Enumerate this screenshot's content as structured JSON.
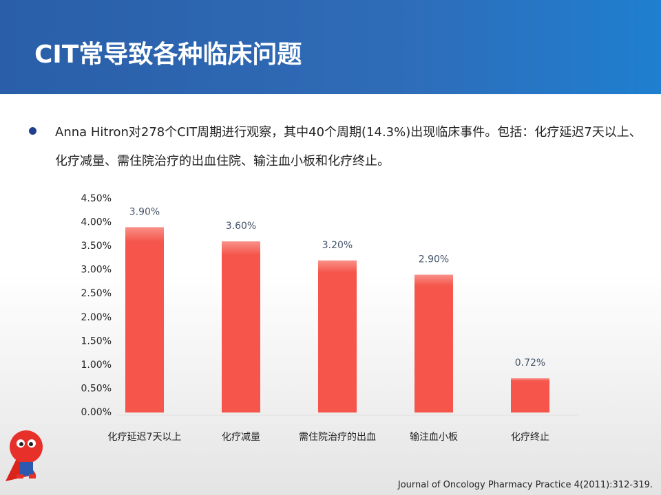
{
  "header": {
    "title": "CIT常导致各种临床问题"
  },
  "bullet": "Anna Hitron对278个CIT周期进行观察，其中40个周期(14.3%)出现临床事件。包括：化疗延迟7天以上、化疗减量、需住院治疗的出血住院、输注血小板和化疗终止。",
  "chart_data": {
    "type": "bar",
    "categories": [
      "化疗延迟7天以上",
      "化疗减量",
      "需住院治疗的出血",
      "输注血小板",
      "化疗终止"
    ],
    "values": [
      3.9,
      3.6,
      3.2,
      2.9,
      0.72
    ],
    "value_labels": [
      "3.90%",
      "3.60%",
      "3.20%",
      "2.90%",
      "0.72%"
    ],
    "color": "#f5554a",
    "ylim": [
      0,
      4.5
    ],
    "yticks": [
      {
        "value": 0,
        "label": "0.00%"
      },
      {
        "value": 0.5,
        "label": "0.50%"
      },
      {
        "value": 1,
        "label": "1.00%"
      },
      {
        "value": 1.5,
        "label": "1.50%"
      },
      {
        "value": 2,
        "label": "2.00%"
      },
      {
        "value": 2.5,
        "label": "2.50%"
      },
      {
        "value": 3,
        "label": "3.00%"
      },
      {
        "value": 3.5,
        "label": "3.50%"
      },
      {
        "value": 4,
        "label": "4.00%"
      },
      {
        "value": 4.5,
        "label": "4.50%"
      }
    ],
    "grid": false
  },
  "footer": {
    "citation": "Journal of Oncology Pharmacy Practice 4(2011):312-319."
  }
}
